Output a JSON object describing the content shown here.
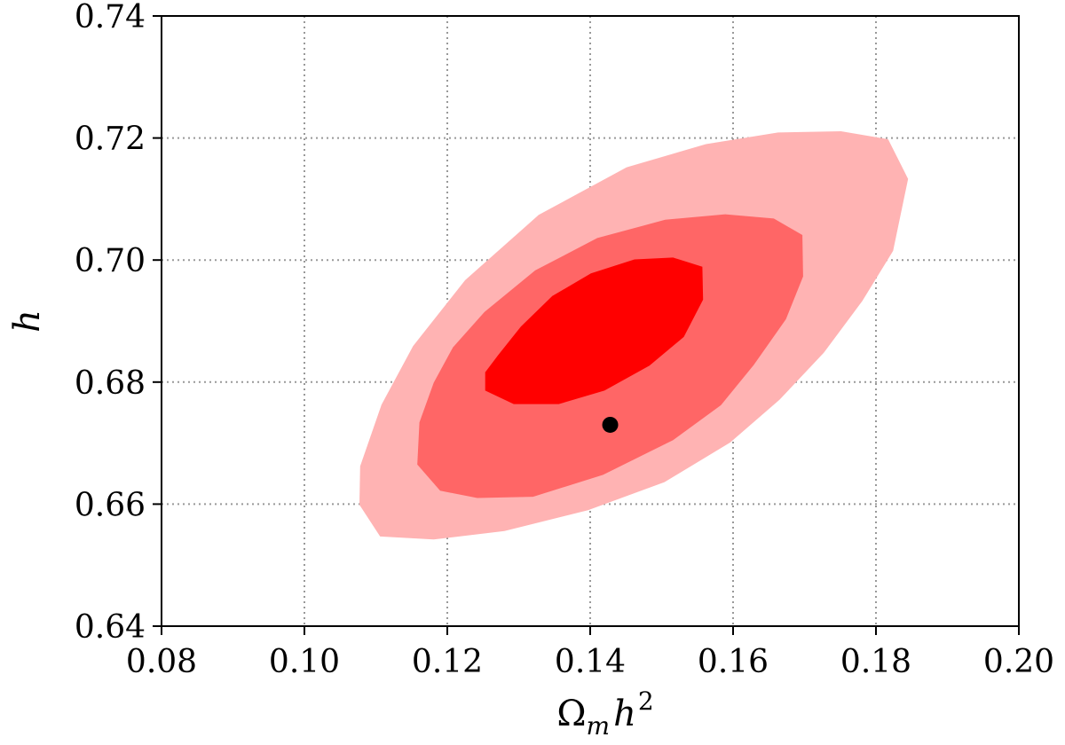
{
  "chart_data": {
    "type": "contour",
    "xlabel": {
      "base": "Ω",
      "sub": "m",
      "var": "h",
      "sup": "2"
    },
    "ylabel": "h",
    "xlim": [
      0.08,
      0.2
    ],
    "ylim": [
      0.64,
      0.74
    ],
    "xticks": [
      0.08,
      0.1,
      0.12,
      0.14,
      0.16,
      0.18,
      0.2
    ],
    "yticks": [
      0.64,
      0.66,
      0.68,
      0.7,
      0.72,
      0.74
    ],
    "xtick_labels": [
      "0.08",
      "0.10",
      "0.12",
      "0.14",
      "0.16",
      "0.18",
      "0.20"
    ],
    "ytick_labels": [
      "0.64",
      "0.66",
      "0.68",
      "0.70",
      "0.72",
      "0.74"
    ],
    "grid": true,
    "colors": {
      "contour_outer": "#ffb3b3",
      "contour_middle": "#ff6666",
      "contour_inner": "#ff0000",
      "marker": "#000000",
      "grid": "#999999"
    },
    "contours": [
      {
        "level": "outer",
        "points": [
          [
            0.1106,
            0.6547
          ],
          [
            0.1181,
            0.6542
          ],
          [
            0.128,
            0.6556
          ],
          [
            0.1397,
            0.659
          ],
          [
            0.1504,
            0.6636
          ],
          [
            0.1596,
            0.6701
          ],
          [
            0.1665,
            0.6771
          ],
          [
            0.1727,
            0.6848
          ],
          [
            0.1781,
            0.6933
          ],
          [
            0.1824,
            0.7015
          ],
          [
            0.1845,
            0.7133
          ],
          [
            0.1817,
            0.7198
          ],
          [
            0.1751,
            0.7211
          ],
          [
            0.1663,
            0.7209
          ],
          [
            0.1562,
            0.719
          ],
          [
            0.1451,
            0.7152
          ],
          [
            0.1328,
            0.7074
          ],
          [
            0.1225,
            0.6967
          ],
          [
            0.1152,
            0.6859
          ],
          [
            0.1108,
            0.6763
          ],
          [
            0.1078,
            0.6662
          ],
          [
            0.1077,
            0.6599
          ]
        ]
      },
      {
        "level": "middle",
        "points": [
          [
            0.119,
            0.6622
          ],
          [
            0.1242,
            0.661
          ],
          [
            0.132,
            0.6612
          ],
          [
            0.1418,
            0.6648
          ],
          [
            0.1516,
            0.6705
          ],
          [
            0.1583,
            0.6762
          ],
          [
            0.1629,
            0.6828
          ],
          [
            0.1674,
            0.6903
          ],
          [
            0.1698,
            0.6973
          ],
          [
            0.1697,
            0.7041
          ],
          [
            0.1657,
            0.7068
          ],
          [
            0.1589,
            0.7075
          ],
          [
            0.1505,
            0.7066
          ],
          [
            0.141,
            0.7036
          ],
          [
            0.1323,
            0.6983
          ],
          [
            0.1252,
            0.6915
          ],
          [
            0.1208,
            0.6857
          ],
          [
            0.1181,
            0.6799
          ],
          [
            0.1161,
            0.6734
          ],
          [
            0.1158,
            0.6665
          ]
        ]
      },
      {
        "level": "inner",
        "points": [
          [
            0.1253,
            0.6786
          ],
          [
            0.1293,
            0.6764
          ],
          [
            0.1356,
            0.6764
          ],
          [
            0.142,
            0.6786
          ],
          [
            0.1483,
            0.6827
          ],
          [
            0.1531,
            0.6874
          ],
          [
            0.1558,
            0.6935
          ],
          [
            0.1557,
            0.6989
          ],
          [
            0.1516,
            0.7004
          ],
          [
            0.1462,
            0.7001
          ],
          [
            0.1401,
            0.6978
          ],
          [
            0.1347,
            0.6941
          ],
          [
            0.1303,
            0.6891
          ],
          [
            0.1271,
            0.6844
          ],
          [
            0.1253,
            0.6816
          ]
        ]
      }
    ],
    "points": [
      {
        "x": 0.1428,
        "y": 0.673
      }
    ]
  }
}
